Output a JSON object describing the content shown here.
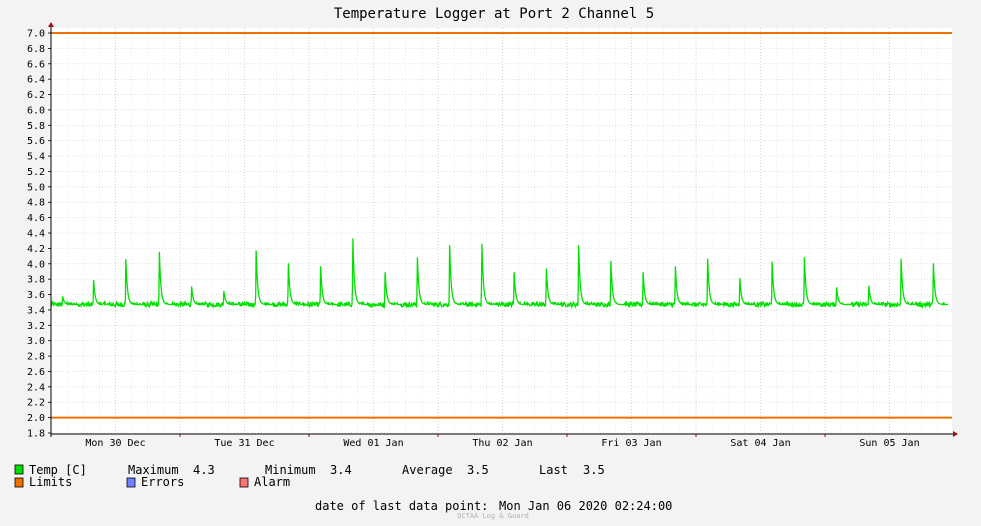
{
  "chart_data": {
    "type": "line",
    "title": "Temperature Logger at Port 2 Channel 5",
    "xlabel": "",
    "ylabel": "",
    "ylim": [
      1.8,
      7.0
    ],
    "y_ticks": [
      1.8,
      2.0,
      2.2,
      2.4,
      2.6,
      2.8,
      3.0,
      3.2,
      3.4,
      3.6,
      3.8,
      4.0,
      4.2,
      4.4,
      4.6,
      4.8,
      5.0,
      5.2,
      5.4,
      5.6,
      5.8,
      6.0,
      6.2,
      6.4,
      6.6,
      6.8,
      7.0
    ],
    "y_tick_labels": [
      "1.8",
      "2.0",
      "2.2",
      "2.4",
      "2.6",
      "2.8",
      "3.0",
      "3.2",
      "3.4",
      "3.6",
      "3.8",
      "4.0",
      "4.2",
      "4.4",
      "4.6",
      "4.8",
      "5.0",
      "5.2",
      "5.4",
      "5.6",
      "5.8",
      "6.0",
      "6.2",
      "6.4",
      "6.6",
      "6.8",
      "7.0"
    ],
    "x_range_days": [
      0,
      7
    ],
    "x_day_labels": [
      "Mon 30 Dec",
      "Tue 31 Dec",
      "Wed 01 Jan",
      "Thu 02 Jan",
      "Fri 03 Jan",
      "Sat 04 Jan",
      "Sun 05 Jan"
    ],
    "grid": true,
    "limits": {
      "upper": 7.0,
      "lower": 2.0
    },
    "baseline": 3.47,
    "spikes": [
      {
        "t": 0.09,
        "v": 3.58
      },
      {
        "t": 0.33,
        "v": 3.8
      },
      {
        "t": 0.58,
        "v": 4.08
      },
      {
        "t": 0.84,
        "v": 4.17
      },
      {
        "t": 1.09,
        "v": 3.71
      },
      {
        "t": 1.34,
        "v": 3.65
      },
      {
        "t": 1.59,
        "v": 4.19
      },
      {
        "t": 1.84,
        "v": 4.02
      },
      {
        "t": 2.09,
        "v": 3.98
      },
      {
        "t": 2.34,
        "v": 4.35
      },
      {
        "t": 2.59,
        "v": 3.9
      },
      {
        "t": 2.84,
        "v": 4.1
      },
      {
        "t": 3.09,
        "v": 4.26
      },
      {
        "t": 3.34,
        "v": 4.28
      },
      {
        "t": 3.59,
        "v": 3.9
      },
      {
        "t": 3.84,
        "v": 3.95
      },
      {
        "t": 4.09,
        "v": 4.26
      },
      {
        "t": 4.34,
        "v": 4.05
      },
      {
        "t": 4.59,
        "v": 3.9
      },
      {
        "t": 4.84,
        "v": 3.98
      },
      {
        "t": 5.09,
        "v": 4.08
      },
      {
        "t": 5.34,
        "v": 3.82
      },
      {
        "t": 5.59,
        "v": 4.04
      },
      {
        "t": 5.84,
        "v": 4.1
      },
      {
        "t": 6.09,
        "v": 3.7
      },
      {
        "t": 6.34,
        "v": 3.72
      },
      {
        "t": 6.59,
        "v": 4.08
      },
      {
        "t": 6.84,
        "v": 4.02
      }
    ],
    "series": [
      {
        "name": "Temp [C]",
        "color": "#00e000"
      },
      {
        "name": "Limits",
        "color": "#f07000"
      }
    ]
  },
  "legend": {
    "temp_label": "Temp [C]",
    "max_label": "Maximum",
    "max_value": "4.3",
    "min_label": "Minimum",
    "min_value": "3.4",
    "avg_label": "Average",
    "avg_value": "3.5",
    "last_label": "Last",
    "last_value": "3.5",
    "limits_label": "Limits",
    "errors_label": "Errors",
    "alarm_label": "Alarm",
    "colors": {
      "temp": "#00e000",
      "limits": "#f07000",
      "errors": "#7080ff",
      "alarm": "#ff7070"
    }
  },
  "footer": {
    "last_point_label": "date of last data point:",
    "last_point_value": "Mon Jan 06 2020 02:24:00",
    "credit": "OCTAA Log & Guard"
  }
}
